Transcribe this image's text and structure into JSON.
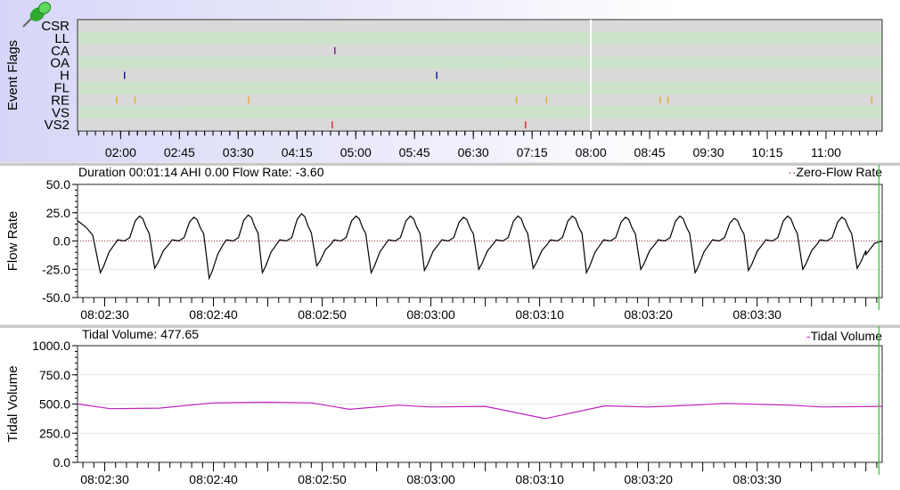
{
  "event_flags": {
    "ylabel": "Event Flags",
    "rows": [
      "CSR",
      "LL",
      "CA",
      "OA",
      "H",
      "FL",
      "RE",
      "VS",
      "VS2"
    ],
    "row_colors": [
      "#d9d9d9",
      "#cde2ca"
    ],
    "pin_icon": "green-pushpin-icon",
    "x_ticks": [
      "02:00",
      "02:45",
      "03:30",
      "04:15",
      "05:00",
      "05:45",
      "06:30",
      "07:15",
      "08:00",
      "08:45",
      "09:30",
      "10:15",
      "11:00"
    ],
    "x_range": [
      "01:27",
      "11:43"
    ],
    "cursor_time": "08:00",
    "events": [
      {
        "type": "CA",
        "time": "04:44",
        "color": "#7a2a7a"
      },
      {
        "type": "H",
        "time": "02:03",
        "color": "#1a1aa0"
      },
      {
        "type": "H",
        "time": "06:02",
        "color": "#1a1aa0"
      },
      {
        "type": "RE",
        "time": "01:57",
        "color": "#e0b030"
      },
      {
        "type": "RE",
        "time": "02:11",
        "color": "#e0b030"
      },
      {
        "type": "RE",
        "time": "03:38",
        "color": "#e0b030"
      },
      {
        "type": "RE",
        "time": "07:03",
        "color": "#e0b030"
      },
      {
        "type": "RE",
        "time": "07:26",
        "color": "#e0b030"
      },
      {
        "type": "RE",
        "time": "08:53",
        "color": "#e0b030"
      },
      {
        "type": "RE",
        "time": "08:59",
        "color": "#e0b030"
      },
      {
        "type": "RE",
        "time": "11:35",
        "color": "#e0b030"
      },
      {
        "type": "VS2",
        "time": "04:42",
        "color": "#e03030"
      },
      {
        "type": "VS2",
        "time": "07:10",
        "color": "#e03030"
      }
    ]
  },
  "chart_data": [
    {
      "type": "line",
      "title": "Duration 00:01:14 AHI 0.00 Flow Rate: -3.60",
      "ylabel": "Flow Rate",
      "legend": "Zero-Flow Rate",
      "legend_placement": "top-right",
      "ylim": [
        -50,
        50
      ],
      "y_ticks": [
        "50.0",
        "25.0",
        "0.0",
        "-25.0",
        "-50.0"
      ],
      "x_range": [
        "08:02:27.5",
        "08:03:41.5"
      ],
      "x_ticks": [
        "08:02:30",
        "08:02:40",
        "08:02:50",
        "08:03:00",
        "08:03:10",
        "08:03:20",
        "08:03:30"
      ],
      "zero_line": 0,
      "line_color": "#000000",
      "zero_color": "#c04040",
      "start": [
        [
          "08:02:27.5",
          18
        ],
        [
          "08:02:28.3",
          12
        ],
        [
          "08:02:28.9",
          5
        ]
      ],
      "breaths": [
        {
          "trough_at": "08:02:29.6",
          "min": -28,
          "max": 22
        },
        {
          "trough_at": "08:02:34.6",
          "min": -24,
          "max": 21
        },
        {
          "trough_at": "08:02:39.6",
          "min": -33,
          "max": 23
        },
        {
          "trough_at": "08:02:44.5",
          "min": -28,
          "max": 24
        },
        {
          "trough_at": "08:02:49.5",
          "min": -22,
          "max": 22
        },
        {
          "trough_at": "08:02:54.5",
          "min": -28,
          "max": 22
        },
        {
          "trough_at": "08:02:59.4",
          "min": -26,
          "max": 21
        },
        {
          "trough_at": "08:03:04.4",
          "min": -25,
          "max": 22
        },
        {
          "trough_at": "08:03:09.4",
          "min": -24,
          "max": 22
        },
        {
          "trough_at": "08:03:14.3",
          "min": -28,
          "max": 21
        },
        {
          "trough_at": "08:03:19.3",
          "min": -25,
          "max": 22
        },
        {
          "trough_at": "08:03:24.3",
          "min": -28,
          "max": 20
        },
        {
          "trough_at": "08:03:29.2",
          "min": -26,
          "max": 22
        },
        {
          "trough_at": "08:03:34.2",
          "min": -25,
          "max": 21
        },
        {
          "trough_at": "08:03:39.2",
          "min": -24,
          "max": 20
        }
      ],
      "end": [
        [
          "08:03:40.0",
          -12
        ],
        [
          "08:03:40.8",
          -2
        ],
        [
          "08:03:41.5",
          0
        ]
      ]
    },
    {
      "type": "line",
      "title": "Tidal Volume: 477.65",
      "ylabel": "Tidal Volume",
      "legend": "Tidal Volume",
      "legend_placement": "top-right",
      "ylim": [
        0,
        1000
      ],
      "y_ticks": [
        "1000.0",
        "750.0",
        "500.0",
        "250.0",
        "0.0"
      ],
      "x_range": [
        "08:02:27.5",
        "08:03:41.5"
      ],
      "x_ticks": [
        "08:02:30",
        "08:02:40",
        "08:02:50",
        "08:03:00",
        "08:03:10",
        "08:03:20",
        "08:03:30"
      ],
      "line_color": "#c020c0",
      "points": [
        [
          "08:02:27.5",
          500
        ],
        [
          "08:02:30.5",
          460
        ],
        [
          "08:02:35",
          465
        ],
        [
          "08:02:40",
          510
        ],
        [
          "08:02:45",
          515
        ],
        [
          "08:02:49",
          510
        ],
        [
          "08:02:52.5",
          455
        ],
        [
          "08:02:57",
          490
        ],
        [
          "08:03:00",
          475
        ],
        [
          "08:03:05",
          480
        ],
        [
          "08:03:10.5",
          375
        ],
        [
          "08:03:16",
          485
        ],
        [
          "08:03:20",
          475
        ],
        [
          "08:03:24",
          490
        ],
        [
          "08:03:27",
          505
        ],
        [
          "08:03:33",
          490
        ],
        [
          "08:03:36",
          475
        ],
        [
          "08:03:41.5",
          480
        ]
      ]
    }
  ],
  "cursor": {
    "time": "08:03:41.2",
    "color": "#30c030"
  }
}
